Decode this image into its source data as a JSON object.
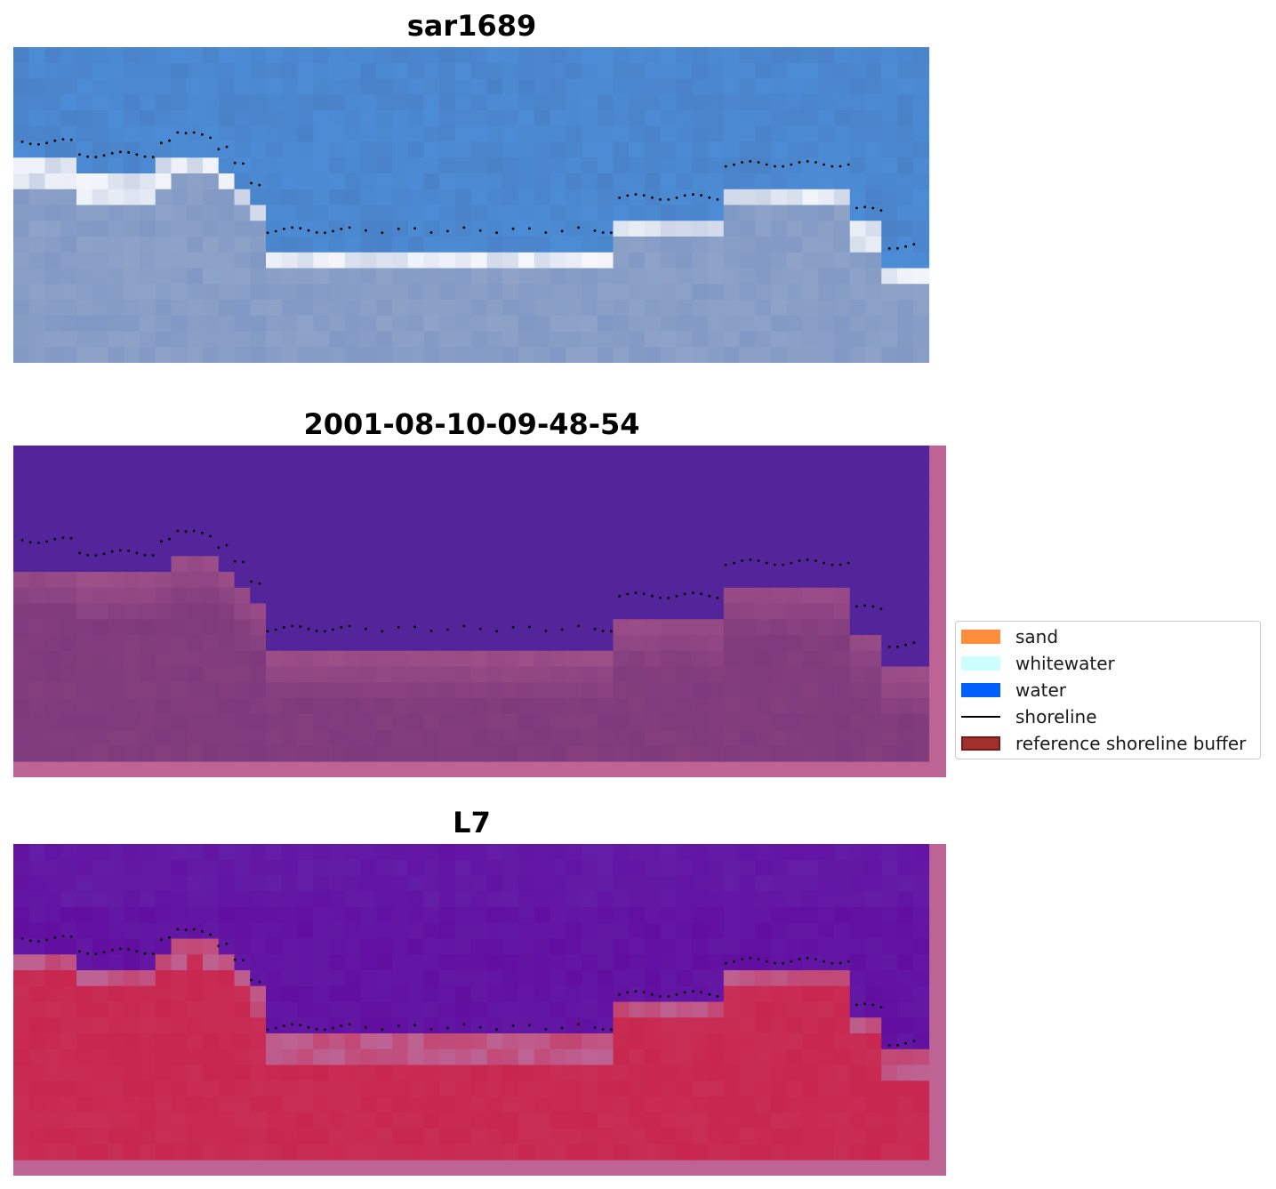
{
  "titles": {
    "panel1": "sar1689",
    "panel2": "2001-08-10-09-48-54",
    "panel3": "L7"
  },
  "legend": {
    "items": [
      {
        "label": "sand",
        "color": "#ff8c3a",
        "kind": "patch"
      },
      {
        "label": "whitewater",
        "color": "#ccfffe",
        "kind": "patch"
      },
      {
        "label": "water",
        "color": "#0060ff",
        "kind": "patch"
      },
      {
        "label": "shoreline",
        "color": "#000000",
        "kind": "line"
      },
      {
        "label": "reference shoreline buffer",
        "color": "#a0302e",
        "edge": "#7a1a18",
        "kind": "patch"
      }
    ]
  },
  "colors": {
    "rgb_sky": "#4a82c8",
    "rgb_sand": "#8fa3c8",
    "rgb_white": "#f4f6fb",
    "class_water": "#54249a",
    "class_land": "#7e3a7c",
    "class_buffer": "#bd6494",
    "mndwi_water": "#620ea0",
    "mndwi_land": "#c8264e",
    "shoreline_dots": "#000000"
  }
}
